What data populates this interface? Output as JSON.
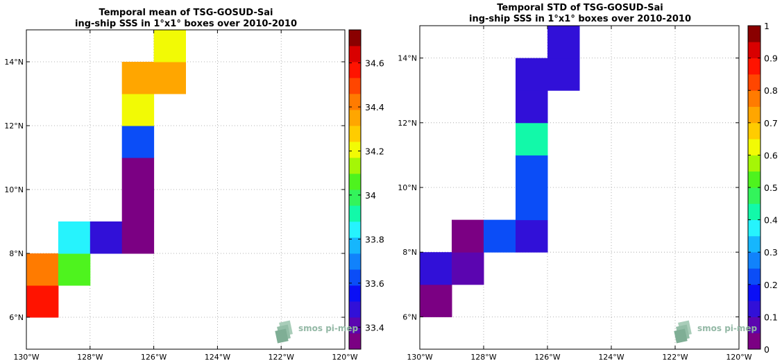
{
  "chart_data": [
    {
      "type": "heatmap",
      "title": [
        "Temporal mean of TSG-GOSUD-Sai",
        "ing-ship SSS in 1°x1° boxes over 2010-2010"
      ],
      "xlim": [
        -130,
        -120
      ],
      "ylim": [
        5,
        15
      ],
      "x_ticks": [
        "130°W",
        "128°W",
        "126°W",
        "124°W",
        "122°W",
        "120°W"
      ],
      "y_ticks": [
        "6°N",
        "8°N",
        "10°N",
        "12°N",
        "14°N"
      ],
      "grid": true,
      "colorbar": {
        "range": [
          33.3,
          34.75
        ],
        "ticks": [
          "33.4",
          "33.6",
          "33.8",
          "34",
          "34.2",
          "34.4",
          "34.6"
        ],
        "tick_values": [
          33.4,
          33.6,
          33.8,
          34.0,
          34.2,
          34.4,
          34.6
        ],
        "colors": [
          "#7b0083",
          "#5b05b0",
          "#3110d8",
          "#0a0ff5",
          "#0b4df7",
          "#1182fb",
          "#16b6fd",
          "#26f3fd",
          "#12f9a9",
          "#33f45b",
          "#4ef31e",
          "#a5f606",
          "#f2fa05",
          "#ffcc00",
          "#ffa600",
          "#ff7b00",
          "#ff4600",
          "#ff1300",
          "#d90000",
          "#8a0000"
        ]
      },
      "cells": [
        {
          "lon": -129.5,
          "lat": 6.5,
          "value": 34.55
        },
        {
          "lon": -129.5,
          "lat": 7.5,
          "value": 34.43
        },
        {
          "lon": -128.5,
          "lat": 7.5,
          "value": 34.03
        },
        {
          "lon": -128.5,
          "lat": 8.5,
          "value": 33.84
        },
        {
          "lon": -127.5,
          "lat": 8.5,
          "value": 33.5
        },
        {
          "lon": -126.5,
          "lat": 8.5,
          "value": 33.35
        },
        {
          "lon": -126.5,
          "lat": 9.5,
          "value": 33.35
        },
        {
          "lon": -126.5,
          "lat": 10.5,
          "value": 33.35
        },
        {
          "lon": -126.5,
          "lat": 11.5,
          "value": 33.6
        },
        {
          "lon": -126.5,
          "lat": 12.5,
          "value": 34.2
        },
        {
          "lon": -126.5,
          "lat": 13.5,
          "value": 34.35
        },
        {
          "lon": -125.5,
          "lat": 13.5,
          "value": 34.35
        },
        {
          "lon": -125.5,
          "lat": 14.5,
          "value": 34.22
        }
      ],
      "logo": "smos pi-mep"
    },
    {
      "type": "heatmap",
      "title": [
        "Temporal STD of TSG-GOSUD-Sai",
        "ing-ship SSS in 1°x1° boxes over 2010-2010"
      ],
      "xlim": [
        -130,
        -120
      ],
      "ylim": [
        5,
        15
      ],
      "x_ticks": [
        "130°W",
        "128°W",
        "126°W",
        "124°W",
        "122°W",
        "120°W"
      ],
      "y_ticks": [
        "6°N",
        "8°N",
        "10°N",
        "12°N",
        "14°N"
      ],
      "grid": true,
      "colorbar": {
        "range": [
          0,
          1
        ],
        "ticks": [
          "0",
          "0.1",
          "0.2",
          "0.3",
          "0.4",
          "0.5",
          "0.6",
          "0.7",
          "0.8",
          "0.9",
          "1"
        ],
        "tick_values": [
          0,
          0.1,
          0.2,
          0.3,
          0.4,
          0.5,
          0.6,
          0.7,
          0.8,
          0.9,
          1
        ],
        "colors": [
          "#7b0083",
          "#5b05b0",
          "#3110d8",
          "#0a0ff5",
          "#0b4df7",
          "#1182fb",
          "#16b6fd",
          "#26f3fd",
          "#12f9a9",
          "#33f45b",
          "#4ef31e",
          "#a5f606",
          "#f2fa05",
          "#ffcc00",
          "#ffa600",
          "#ff7b00",
          "#ff4600",
          "#ff1300",
          "#d90000",
          "#8a0000"
        ]
      },
      "cells": [
        {
          "lon": -129.5,
          "lat": 6.5,
          "value": 0.02
        },
        {
          "lon": -129.5,
          "lat": 7.5,
          "value": 0.13
        },
        {
          "lon": -128.5,
          "lat": 7.5,
          "value": 0.08
        },
        {
          "lon": -128.5,
          "lat": 8.5,
          "value": 0.02
        },
        {
          "lon": -127.5,
          "lat": 8.5,
          "value": 0.22
        },
        {
          "lon": -126.5,
          "lat": 8.5,
          "value": 0.13
        },
        {
          "lon": -126.5,
          "lat": 9.5,
          "value": 0.22
        },
        {
          "lon": -126.5,
          "lat": 10.5,
          "value": 0.22
        },
        {
          "lon": -126.5,
          "lat": 11.5,
          "value": 0.42
        },
        {
          "lon": -126.5,
          "lat": 12.5,
          "value": 0.13
        },
        {
          "lon": -126.5,
          "lat": 13.5,
          "value": 0.13
        },
        {
          "lon": -125.5,
          "lat": 13.5,
          "value": 0.13
        },
        {
          "lon": -125.5,
          "lat": 14.5,
          "value": 0.13
        }
      ],
      "logo": "smos pi-mep"
    }
  ]
}
